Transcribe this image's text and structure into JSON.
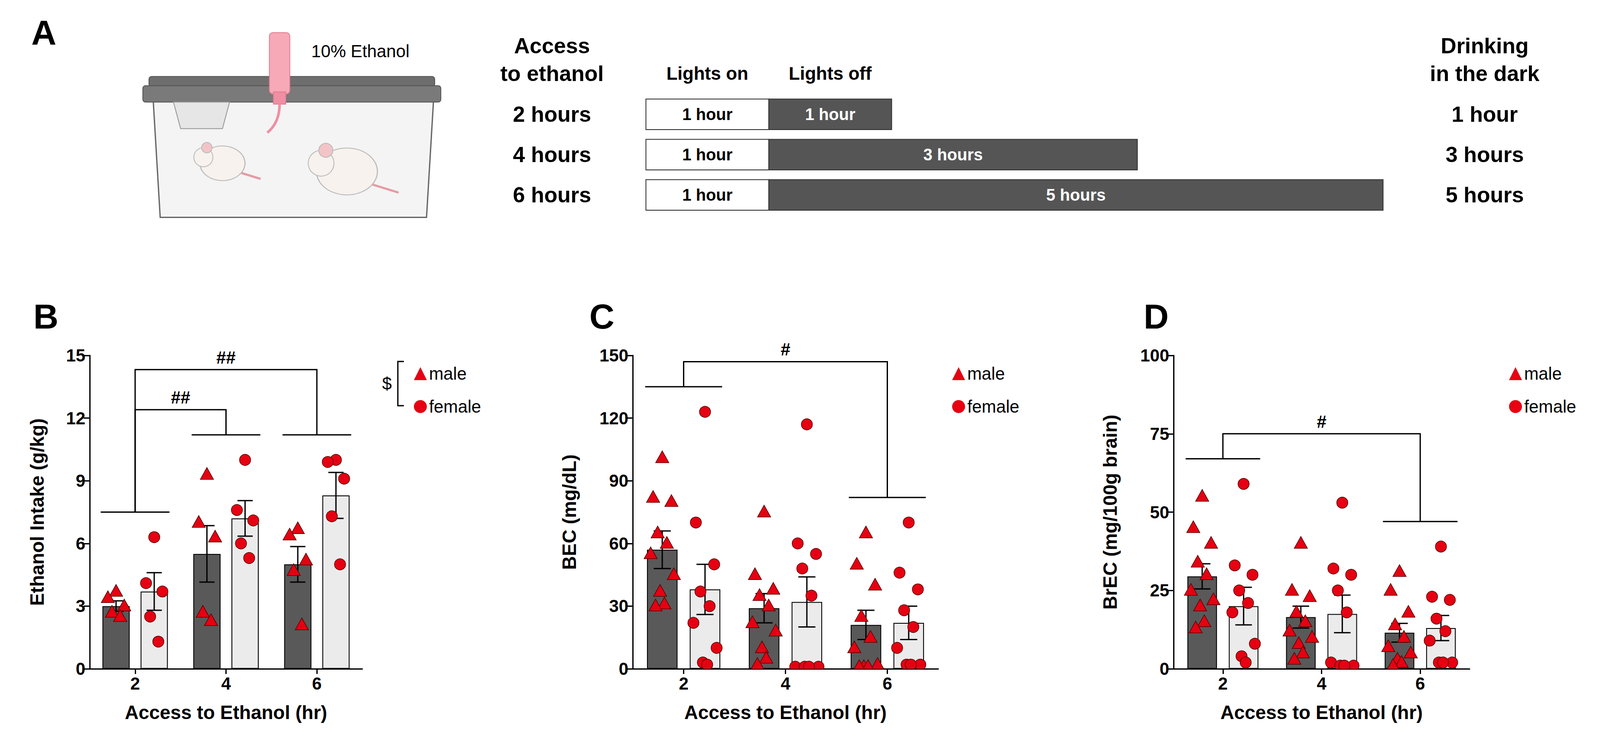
{
  "panel_a": {
    "label": "A",
    "bottle_label": "10% Ethanol",
    "left_header": [
      "Access",
      "to ethanol"
    ],
    "right_header": [
      "Drinking",
      "in the dark"
    ],
    "col_headers": [
      "Lights on",
      "Lights off"
    ],
    "rows": [
      {
        "access": "2 hours",
        "light": {
          "hours": 1,
          "label": "1 hour"
        },
        "dark": {
          "hours": 1,
          "label": "1 hour"
        },
        "drinking": "1 hour"
      },
      {
        "access": "4 hours",
        "light": {
          "hours": 1,
          "label": "1 hour"
        },
        "dark": {
          "hours": 3,
          "label": "3 hours"
        },
        "drinking": "3 hours"
      },
      {
        "access": "6 hours",
        "light": {
          "hours": 1,
          "label": "1 hour"
        },
        "dark": {
          "hours": 5,
          "label": "5 hours"
        },
        "drinking": "5 hours"
      }
    ]
  },
  "chart_data": [
    {
      "type": "bar",
      "title": "B",
      "x_label": "Access to Ethanol (hr)",
      "y_label": "Ethanol Intake (g/kg)",
      "categories": [
        "2",
        "4",
        "6"
      ],
      "ylim": [
        0,
        15
      ],
      "yticks": [
        0,
        3,
        6,
        9,
        12,
        15
      ],
      "grid": false,
      "legend": "right",
      "series": [
        {
          "name": "male",
          "color": "#595959",
          "marker": "triangle",
          "values": [
            3.0,
            5.5,
            5.0
          ],
          "errors": [
            0.25,
            1.35,
            0.85
          ],
          "points": [
            [
              3.7,
              3.4,
              3.0,
              2.7,
              2.5
            ],
            [
              9.3,
              7.0,
              6.3,
              2.7,
              2.3
            ],
            [
              6.7,
              6.4,
              5.2,
              4.7,
              2.1
            ]
          ]
        },
        {
          "name": "female",
          "color": "#ebebeb",
          "marker": "circle",
          "values": [
            3.7,
            7.2,
            8.3
          ],
          "errors": [
            0.9,
            0.85,
            1.1
          ],
          "points": [
            [
              6.3,
              4.1,
              3.7,
              2.5,
              1.3
            ],
            [
              10.0,
              7.6,
              7.1,
              6.0,
              5.3
            ],
            [
              10.0,
              9.9,
              9.1,
              7.3,
              5.0
            ]
          ]
        }
      ],
      "annotations": [
        {
          "text": "##",
          "between": [
            "2",
            "4"
          ]
        },
        {
          "text": "##",
          "between": [
            "2",
            "6"
          ]
        },
        {
          "text": "$",
          "between": [
            "male",
            "female"
          ]
        }
      ]
    },
    {
      "type": "bar",
      "title": "C",
      "x_label": "Access to Ethanol (hr)",
      "y_label": "BEC (mg/dL)",
      "categories": [
        "2",
        "4",
        "6"
      ],
      "ylim": [
        0,
        150
      ],
      "yticks": [
        0,
        30,
        60,
        90,
        120,
        150
      ],
      "grid": false,
      "legend": "right",
      "series": [
        {
          "name": "male",
          "color": "#595959",
          "marker": "triangle",
          "values": [
            57,
            29,
            21
          ],
          "errors": [
            9,
            7,
            7
          ],
          "points": [
            [
              101,
              82,
              80,
              65,
              60,
              55,
              45,
              37,
              31,
              30
            ],
            [
              75,
              45,
              38,
              35,
              30,
              22,
              18,
              10,
              5,
              2
            ],
            [
              65,
              50,
              40,
              25,
              15,
              10,
              2,
              1,
              1,
              1
            ]
          ]
        },
        {
          "name": "female",
          "color": "#ebebeb",
          "marker": "circle",
          "values": [
            38,
            32,
            22
          ],
          "errors": [
            12,
            12,
            8
          ],
          "points": [
            [
              123,
              70,
              50,
              37,
              30,
              22,
              10,
              3,
              2
            ],
            [
              117,
              60,
              55,
              48,
              35,
              1,
              1,
              1,
              1
            ],
            [
              70,
              46,
              38,
              28,
              20,
              10,
              2,
              2,
              2
            ]
          ]
        }
      ],
      "annotations": [
        {
          "text": "#",
          "between": [
            "2",
            "6"
          ]
        }
      ]
    },
    {
      "type": "bar",
      "title": "D",
      "x_label": "Access to Ethanol (hr)",
      "y_label": "BrEC (mg/100g brain)",
      "categories": [
        "2",
        "4",
        "6"
      ],
      "ylim": [
        0,
        100
      ],
      "yticks": [
        0,
        25,
        50,
        75,
        100
      ],
      "grid": false,
      "legend": "right",
      "series": [
        {
          "name": "male",
          "color": "#595959",
          "marker": "triangle",
          "values": [
            29.5,
            16.5,
            11.5
          ],
          "errors": [
            4,
            3.5,
            3
          ],
          "points": [
            [
              55,
              45,
              40,
              34,
              30,
              25,
              22,
              20,
              15,
              13
            ],
            [
              40,
              25,
              23,
              18,
              15,
              12,
              10,
              8,
              5,
              3
            ],
            [
              31,
              25,
              18,
              14,
              10,
              7,
              5,
              3,
              2,
              1
            ]
          ]
        },
        {
          "name": "female",
          "color": "#ebebeb",
          "marker": "circle",
          "values": [
            20,
            17.5,
            13
          ],
          "errors": [
            6,
            6,
            4
          ],
          "points": [
            [
              59,
              33,
              30,
              25,
              21,
              18,
              8,
              4,
              2
            ],
            [
              53,
              32,
              30,
              25,
              18,
              2,
              1,
              1,
              1
            ],
            [
              39,
              23,
              22,
              16,
              12,
              9,
              2,
              2,
              2
            ]
          ]
        }
      ],
      "annotations": [
        {
          "text": "#",
          "between": [
            "2",
            "6"
          ]
        }
      ]
    }
  ]
}
